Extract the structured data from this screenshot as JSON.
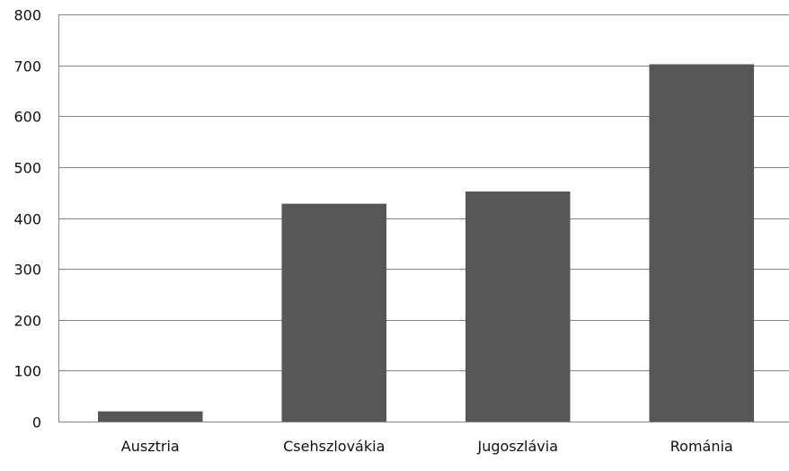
{
  "chart_data": {
    "type": "bar",
    "categories": [
      "Ausztria",
      "Csehszlovákia",
      "Jugoszlávia",
      "Románia"
    ],
    "values": [
      20,
      428,
      452,
      702
    ],
    "title": "",
    "xlabel": "",
    "ylabel": "",
    "ylim": [
      0,
      800
    ],
    "yticks": [
      "0",
      "100",
      "200",
      "300",
      "400",
      "500",
      "600",
      "700",
      "800"
    ],
    "grid": true,
    "legend": "none",
    "bar_color": "#575757",
    "grid_color": "#868686"
  }
}
